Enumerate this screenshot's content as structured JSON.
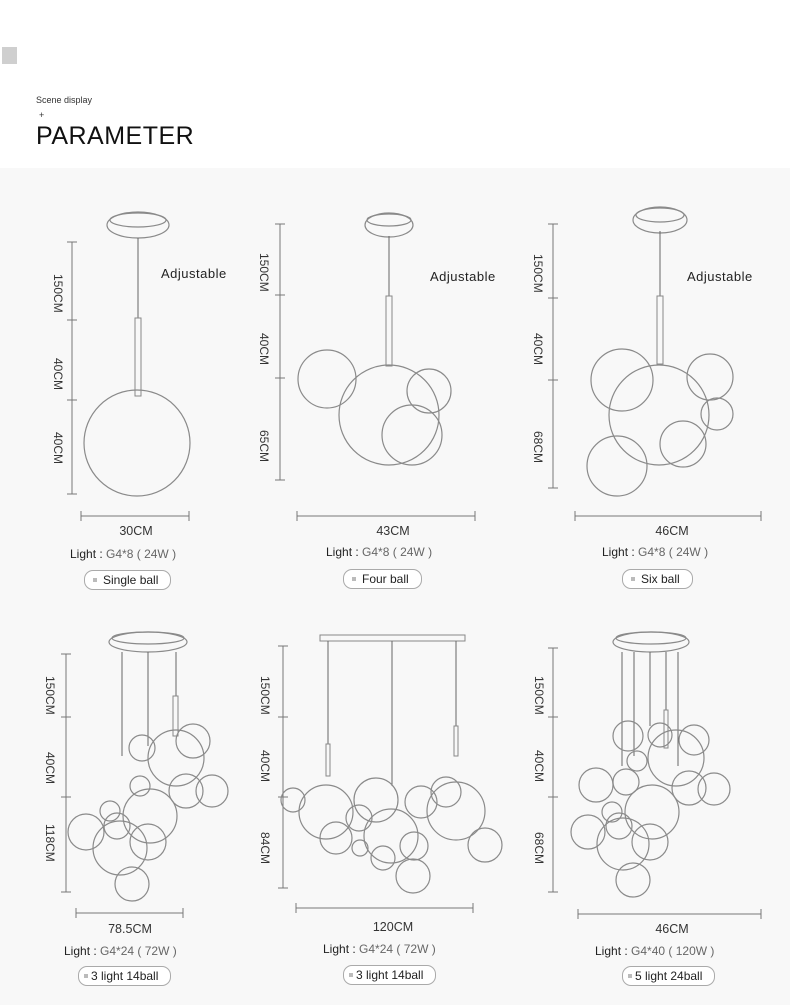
{
  "header": {
    "scene_label": "Scene display",
    "plus": "+",
    "title": "PARAMETER"
  },
  "products": [
    {
      "adjustable": "Adjustable",
      "heights": [
        "150CM",
        "40CM",
        "40CM"
      ],
      "width": "30CM",
      "light_label": "Light :",
      "light_value": "G4*8 ( 24W )",
      "badge": "Single ball"
    },
    {
      "adjustable": "Adjustable",
      "heights": [
        "150CM",
        "40CM",
        "65CM"
      ],
      "width": "43CM",
      "light_label": "Light :",
      "light_value": "G4*8 ( 24W )",
      "badge": "Four ball"
    },
    {
      "adjustable": "Adjustable",
      "heights": [
        "150CM",
        "40CM",
        "68CM"
      ],
      "width": "46CM",
      "light_label": "Light :",
      "light_value": "G4*8 ( 24W )",
      "badge": "Six ball"
    },
    {
      "heights": [
        "150CM",
        "40CM",
        "118CM"
      ],
      "width": "78.5CM",
      "light_label": "Light :",
      "light_value": "G4*24 ( 72W )",
      "badge": "3 light 14ball"
    },
    {
      "heights": [
        "150CM",
        "40CM",
        "84CM"
      ],
      "width": "120CM",
      "light_label": "Light :",
      "light_value": "G4*24 ( 72W )",
      "badge": "3 light 14ball"
    },
    {
      "heights": [
        "150CM",
        "40CM",
        "68CM"
      ],
      "width": "46CM",
      "light_label": "Light :",
      "light_value": "G4*40 ( 120W )",
      "badge": "5 light 24ball"
    }
  ]
}
